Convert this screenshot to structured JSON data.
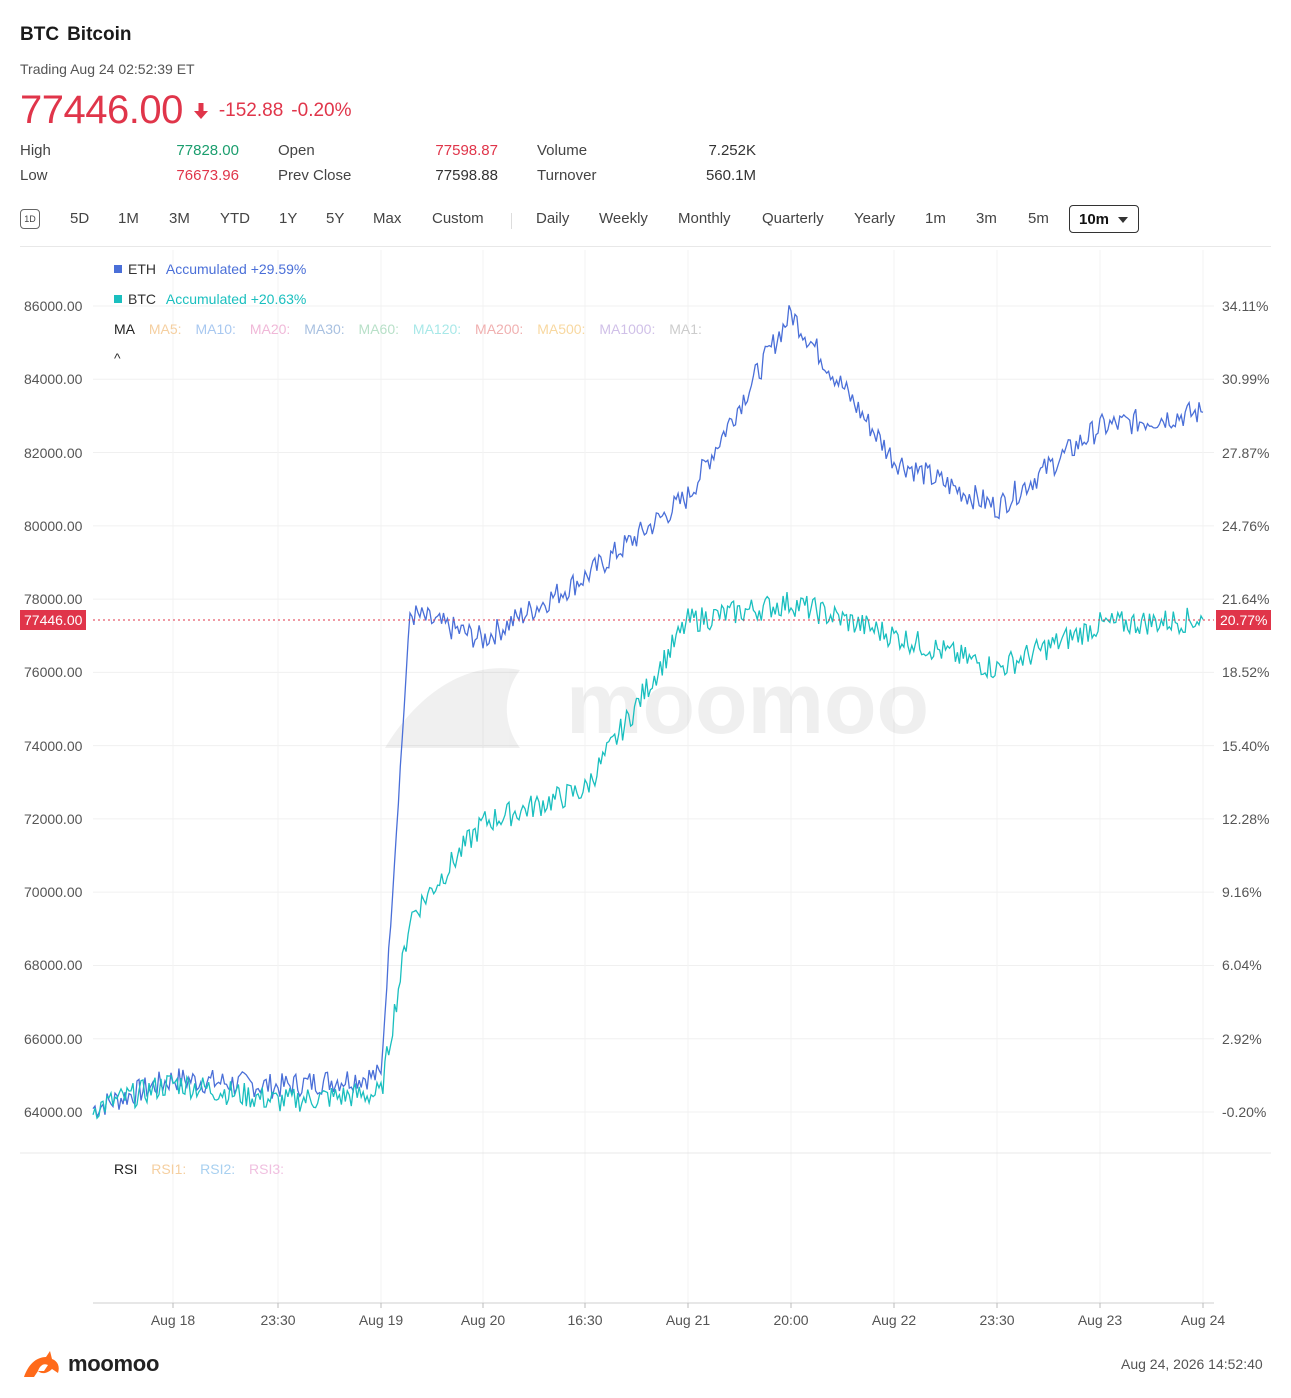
{
  "header": {
    "symbol": "BTC",
    "name": "Bitcoin",
    "status": "Trading Aug 24 02:52:39 ET",
    "price": "77446.00",
    "change": "-152.88",
    "change_pct": "-0.20%"
  },
  "stats": {
    "high_label": "High",
    "high": "77828.00",
    "low_label": "Low",
    "low": "76673.96",
    "open_label": "Open",
    "open": "77598.87",
    "prev_close_label": "Prev Close",
    "prev_close": "77598.88",
    "volume_label": "Volume",
    "volume": "7.252K",
    "turnover_label": "Turnover",
    "turnover": "560.1M"
  },
  "toolbar": {
    "day_icon": "1D",
    "ranges": [
      "5D",
      "1M",
      "3M",
      "YTD",
      "1Y",
      "5Y",
      "Max",
      "Custom"
    ],
    "periods": [
      "Daily",
      "Weekly",
      "Monthly",
      "Quarterly",
      "Yearly",
      "1m",
      "3m",
      "5m"
    ],
    "selected_interval": "10m"
  },
  "legend": {
    "eth_name": "ETH",
    "eth_accum": "Accumulated +29.59%",
    "btc_name": "BTC",
    "btc_accum": "Accumulated +20.63%",
    "ma_label": "MA",
    "ma_items": [
      "MA5:",
      "MA10:",
      "MA20:",
      "MA30:",
      "MA60:",
      "MA120:",
      "MA200:",
      "MA500:",
      "MA1000:",
      "MA1:"
    ],
    "collapse_glyph": "^"
  },
  "colors": {
    "eth": "#4a6fd8",
    "btc": "#1abfbf",
    "up": "#1b9e6e",
    "down": "#e0354a"
  },
  "axes": {
    "y_left": [
      "86000.00",
      "84000.00",
      "82000.00",
      "80000.00",
      "78000.00",
      "76000.00",
      "74000.00",
      "72000.00",
      "70000.00",
      "68000.00",
      "66000.00",
      "64000.00"
    ],
    "y_right": [
      "34.11%",
      "30.99%",
      "27.87%",
      "24.76%",
      "21.64%",
      "18.52%",
      "15.40%",
      "12.28%",
      "9.16%",
      "6.04%",
      "2.92%",
      "-0.20%"
    ],
    "x": [
      "Aug 18",
      "23:30",
      "Aug 19",
      "Aug 20",
      "16:30",
      "Aug 21",
      "20:00",
      "Aug 22",
      "23:30",
      "Aug 23",
      "Aug 24"
    ],
    "price_tag": "77446.00",
    "pct_tag": "20.77%"
  },
  "watermark": "moomoo",
  "rsi": {
    "label": "RSI",
    "items": [
      "RSI1:",
      "RSI2:",
      "RSI3:"
    ]
  },
  "footer": {
    "brand": "moomoo",
    "timestamp": "Aug 24, 2026 14:52:40"
  },
  "chart_data": {
    "type": "line",
    "y_left_range": [
      64000,
      86000
    ],
    "y_right_range": [
      "-0.20%",
      "34.11%"
    ],
    "grid": true,
    "series": [
      {
        "name": "ETH",
        "x": [
          "Aug 18 (start)",
          "Aug 18",
          "23:30",
          "Aug 19",
          "Aug 19 (late)",
          "Aug 20",
          "16:30",
          "Aug 21",
          "20:00",
          "Aug 22",
          "23:30",
          "Aug 23",
          "Aug 24"
        ],
        "values": [
          64100,
          64900,
          64700,
          65000,
          77600,
          76900,
          78600,
          80800,
          85800,
          81800,
          80500,
          82700,
          83100
        ]
      },
      {
        "name": "BTC",
        "x": [
          "Aug 18 (start)",
          "Aug 18",
          "23:30",
          "Aug 19",
          "Aug 19 (late)",
          "Aug 20",
          "16:30",
          "Aug 21",
          "20:00",
          "Aug 22",
          "23:30",
          "Aug 23",
          "Aug 24"
        ],
        "values": [
          64100,
          64800,
          64300,
          64500,
          69300,
          71900,
          72800,
          77400,
          77900,
          77000,
          76100,
          77300,
          77446
        ]
      }
    ]
  }
}
